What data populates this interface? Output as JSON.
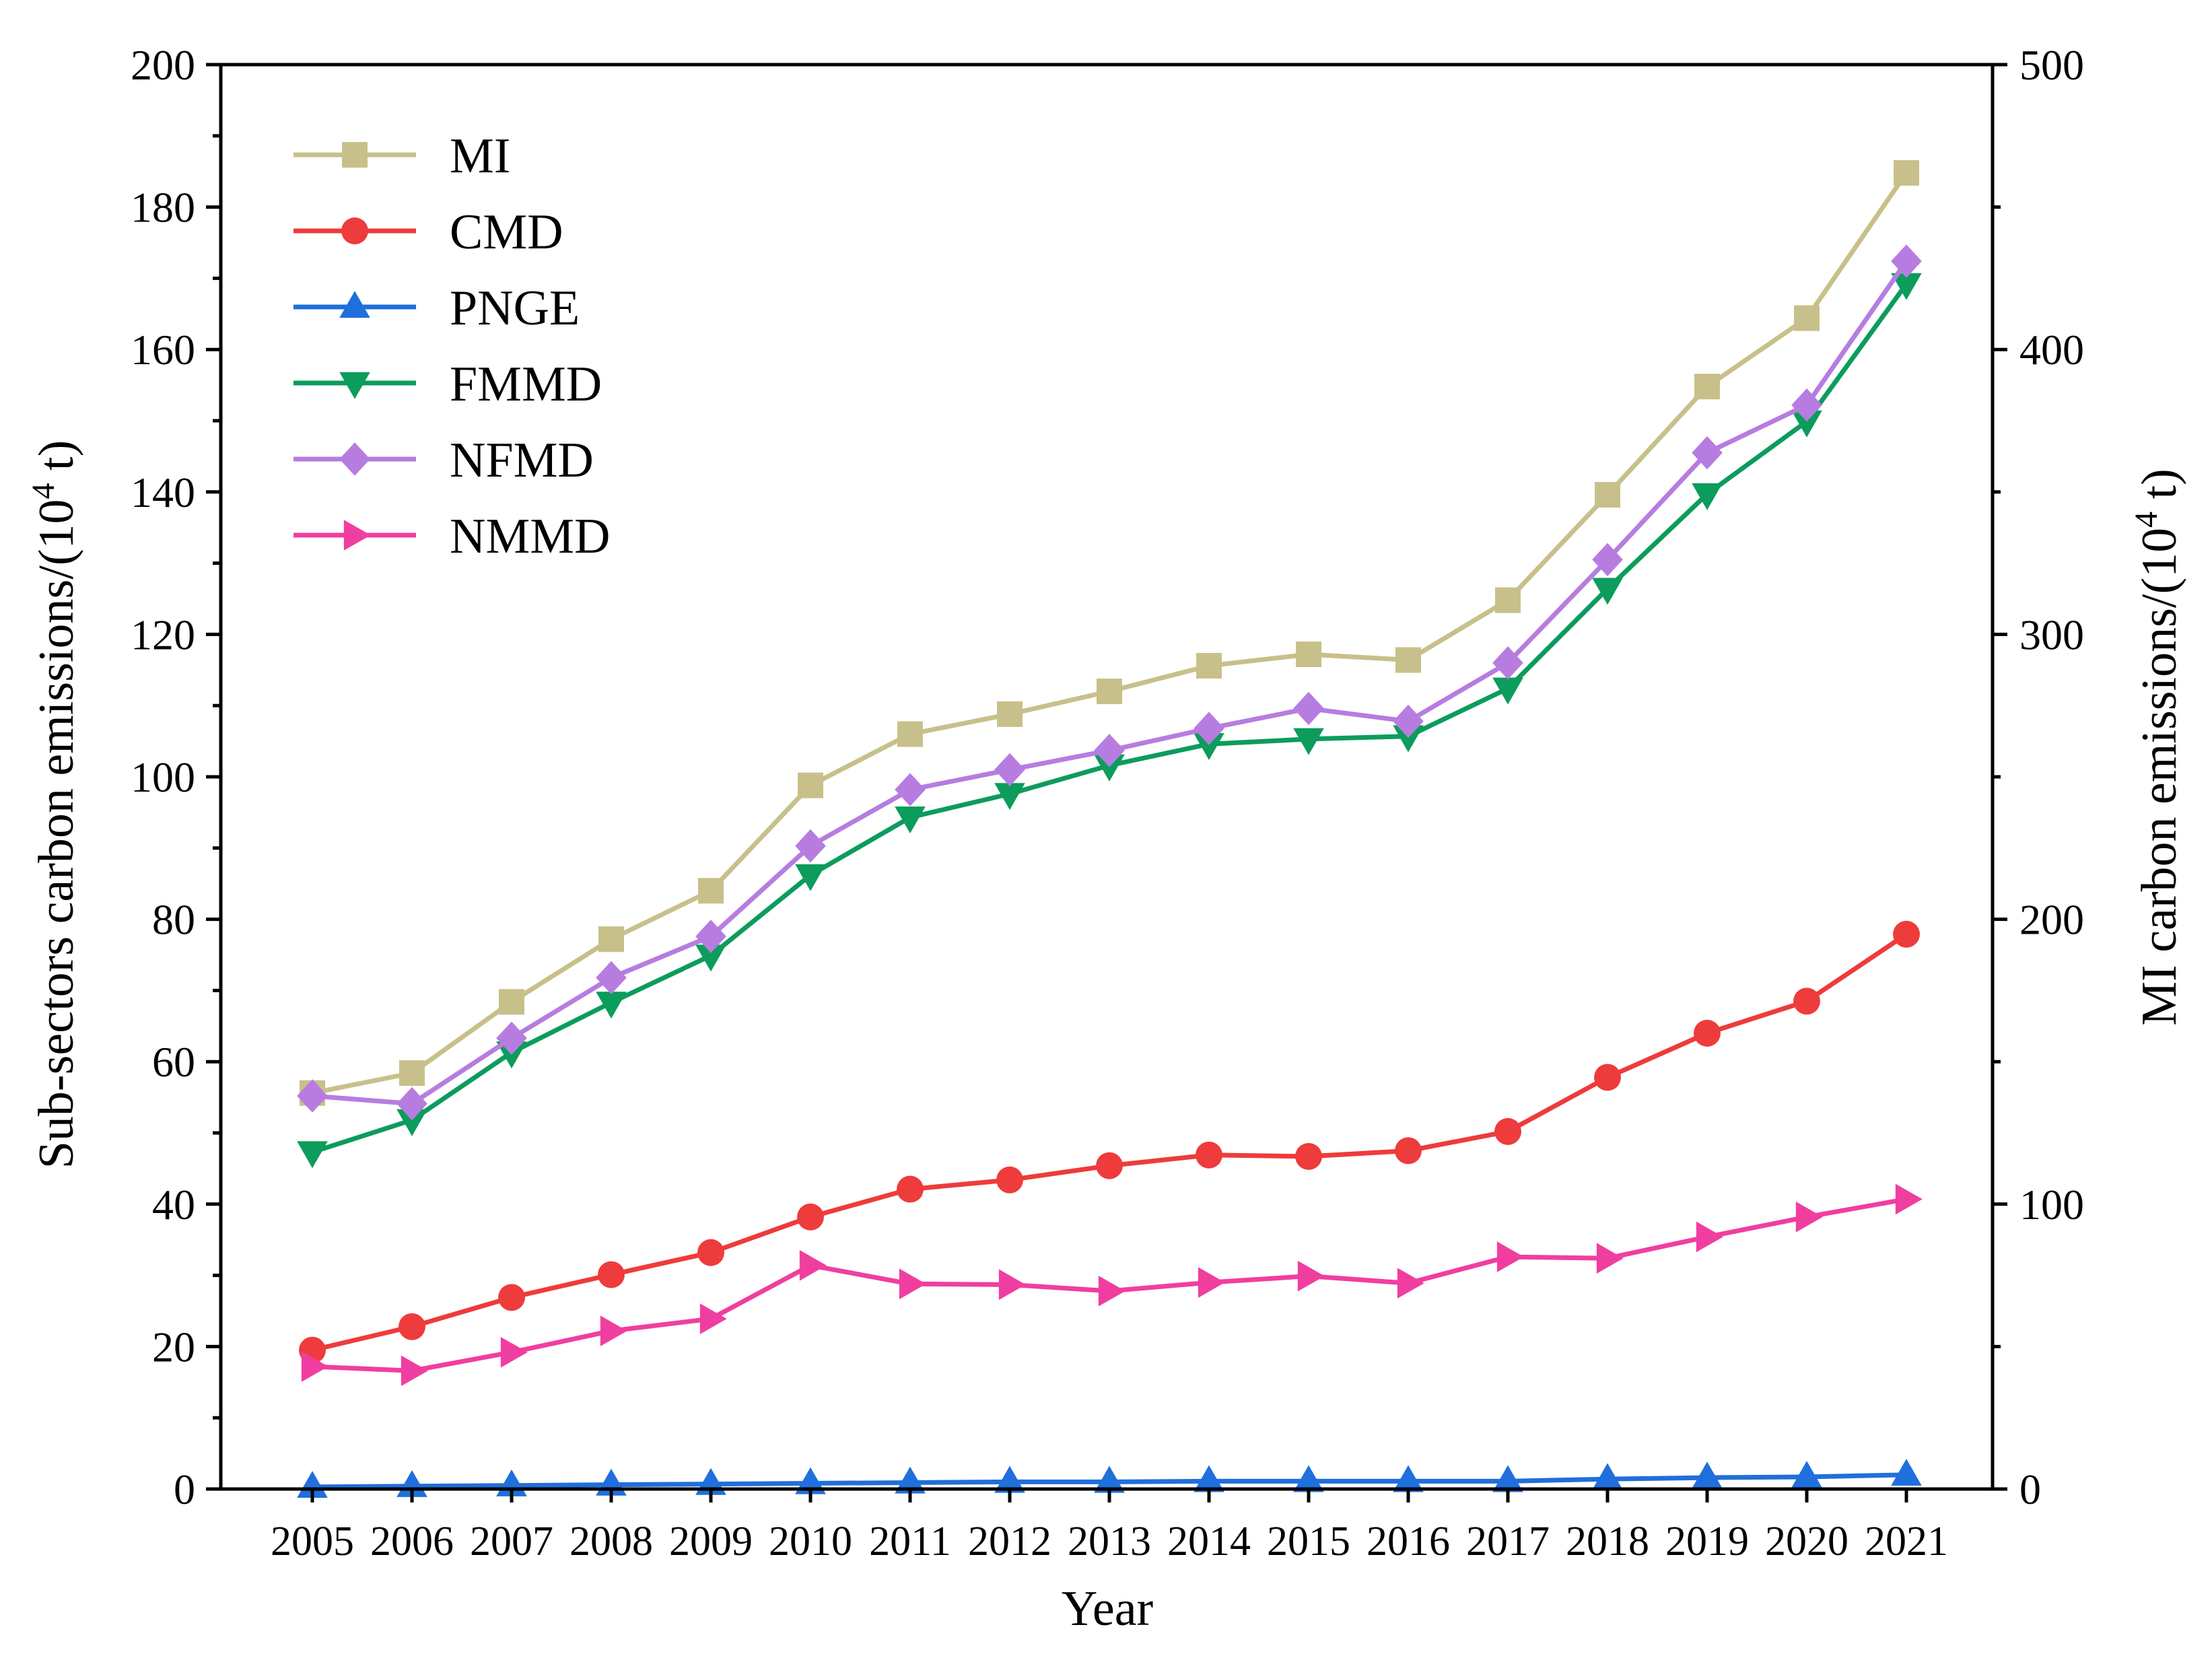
{
  "chart_data": {
    "type": "line",
    "categories": [
      "2005",
      "2006",
      "2007",
      "2008",
      "2009",
      "2010",
      "2011",
      "2012",
      "2013",
      "2014",
      "2015",
      "2016",
      "2017",
      "2018",
      "2019",
      "2020",
      "2021"
    ],
    "xlabel": "Year",
    "ylabel_main": "Sub-sectors carbon emissions/(10",
    "ylabel_right_main": "MI carbon emissions/(10",
    "ylabel_sup": "4",
    "ylabel_unit": " t)",
    "ylim": [
      0,
      200
    ],
    "ylim_right": [
      0,
      500
    ],
    "yticks": [
      "0",
      "20",
      "40",
      "60",
      "80",
      "100",
      "120",
      "140",
      "160",
      "180",
      "200"
    ],
    "yticks_right": [
      "0",
      "100",
      "200",
      "300",
      "400",
      "500"
    ],
    "legend_position": "top-left",
    "series": [
      {
        "name": "MI",
        "axis": "right",
        "color": "#c8c08a",
        "marker": "square",
        "values": [
          139,
          146,
          171,
          193,
          210,
          247,
          265,
          272,
          280,
          289,
          293,
          291,
          312,
          349,
          387,
          411,
          462
        ]
      },
      {
        "name": "CMD",
        "axis": "left",
        "color": "#ee3b3b",
        "marker": "circle",
        "values": [
          19.5,
          22.8,
          26.9,
          30.1,
          33.2,
          38.2,
          42.1,
          43.4,
          45.4,
          46.9,
          46.7,
          47.5,
          50.2,
          57.8,
          64.0,
          68.5,
          77.9
        ]
      },
      {
        "name": "PNGE",
        "axis": "left",
        "color": "#1f6fdc",
        "marker": "triangle-up",
        "values": [
          0.3,
          0.4,
          0.5,
          0.6,
          0.7,
          0.8,
          0.9,
          1.0,
          1.0,
          1.1,
          1.1,
          1.1,
          1.1,
          1.4,
          1.6,
          1.7,
          2.0
        ]
      },
      {
        "name": "FMMD",
        "axis": "left",
        "color": "#0c9c5c",
        "marker": "triangle-down",
        "values": [
          47.3,
          51.8,
          61.3,
          68.3,
          74.9,
          86.2,
          94.3,
          97.6,
          101.6,
          104.6,
          105.3,
          105.7,
          112.4,
          126.4,
          139.7,
          149.9,
          169.2
        ]
      },
      {
        "name": "NFMD",
        "axis": "left",
        "color": "#b77ce0",
        "marker": "diamond",
        "values": [
          55.2,
          54.1,
          63.3,
          71.8,
          77.6,
          90.3,
          98.2,
          101.0,
          103.7,
          106.8,
          109.6,
          107.8,
          116.0,
          130.5,
          145.5,
          152.2,
          172.4
        ]
      },
      {
        "name": "NMMD",
        "axis": "left",
        "color": "#f03ea0",
        "marker": "triangle-right",
        "values": [
          17.2,
          16.6,
          19.2,
          22.2,
          23.9,
          31.4,
          28.8,
          28.7,
          27.8,
          29.0,
          29.9,
          28.9,
          32.6,
          32.4,
          35.4,
          38.2,
          40.7
        ]
      }
    ]
  }
}
